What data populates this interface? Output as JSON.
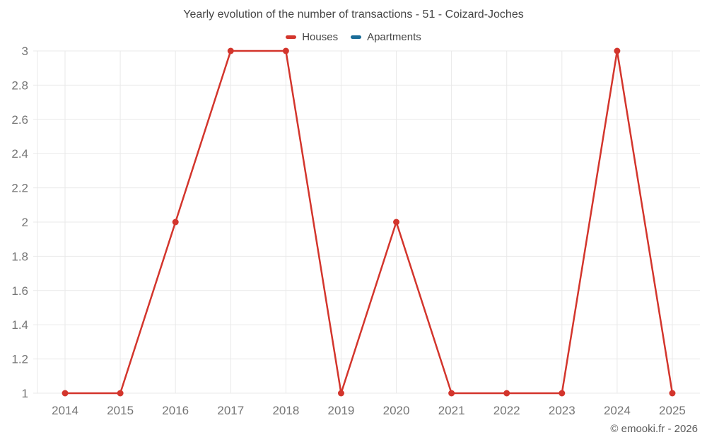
{
  "chart": {
    "title": "Yearly evolution of the number of transactions - 51 - Coizard-Joches",
    "watermark": "© emooki.fr - 2026"
  },
  "chart_data": {
    "type": "line",
    "title": "Yearly evolution of the number of transactions - 51 - Coizard-Joches",
    "categories": [
      "2014",
      "2015",
      "2016",
      "2017",
      "2018",
      "2019",
      "2020",
      "2021",
      "2022",
      "2023",
      "2024",
      "2025"
    ],
    "series": [
      {
        "name": "Houses",
        "color": "#d3352c",
        "values": [
          1,
          1,
          2,
          3,
          3,
          1,
          2,
          1,
          1,
          1,
          3,
          1
        ]
      },
      {
        "name": "Apartments",
        "color": "#1a6c98",
        "values": []
      }
    ],
    "xlabel": "",
    "ylabel": "",
    "ylim": [
      1,
      3
    ],
    "ytick_labels": [
      "1",
      "1.2",
      "1.4",
      "1.6",
      "1.8",
      "2",
      "2.2",
      "2.4",
      "2.6",
      "2.8",
      "3"
    ],
    "grid": true,
    "legend_position": "top",
    "grid_color": "#e9e9e9",
    "tick_color": "#757575",
    "point_radius": 4.5,
    "line_width": 2.5
  }
}
